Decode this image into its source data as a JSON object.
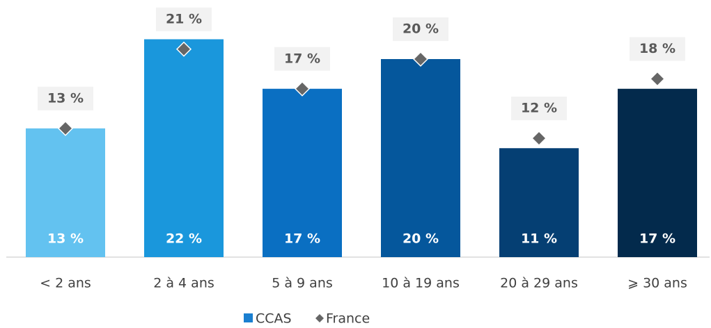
{
  "chart_data": {
    "type": "bar",
    "categories": [
      "< 2 ans",
      "2 à 4 ans",
      "5 à 9 ans",
      "10 à 19 ans",
      "20 à 29 ans",
      "⩾ 30 ans"
    ],
    "series": [
      {
        "name": "CCAS",
        "type": "bar",
        "color": "#1a7fd0",
        "colors": [
          "#63c2f0",
          "#1a97dc",
          "#0a6fc2",
          "#05579c",
          "#053f73",
          "#032a4c"
        ],
        "values": [
          13,
          22,
          17,
          20,
          11,
          17
        ],
        "value_labels": [
          "13 %",
          "22 %",
          "17 %",
          "20 %",
          "11 %",
          "17 %"
        ]
      },
      {
        "name": "France",
        "type": "marker",
        "color": "#666666",
        "values": [
          13,
          21,
          17,
          20,
          12,
          18
        ],
        "value_labels": [
          "13 %",
          "21 %",
          "17 %",
          "20 %",
          "12 %",
          "18 %"
        ]
      }
    ],
    "legend": "bottom"
  }
}
